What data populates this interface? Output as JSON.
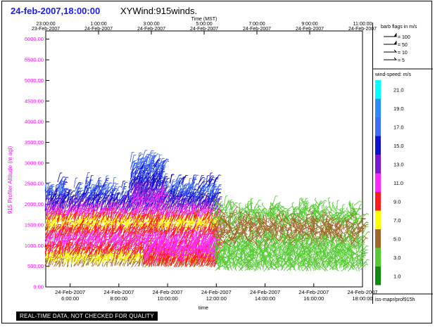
{
  "header": {
    "datetime": "24-feb-2007,18:00:00",
    "title": "XYWind:915winds."
  },
  "footer_note": "REAL-TIME DATA, NOT CHECKED FOR QUALITY",
  "chart_data": {
    "type": "wind-barb-time-height",
    "top_axis": {
      "title": "Time (MST)",
      "ticks": [
        {
          "time": "23:00:00",
          "date": "23-Feb-2007"
        },
        {
          "time": "1:00:00",
          "date": "24-Feb-2007"
        },
        {
          "time": "3:00:00",
          "date": "24-Feb-2007"
        },
        {
          "time": "5:00:00",
          "date": "24-Feb-2007"
        },
        {
          "time": "7:00:00",
          "date": "24-Feb-2007"
        },
        {
          "time": "9:00:00",
          "date": "24-Feb-2007"
        },
        {
          "time": "11:00:00",
          "date": "24-Feb-2007"
        }
      ]
    },
    "bottom_axis": {
      "title": "time",
      "ticks": [
        {
          "date": "24-Feb-2007",
          "time": "6:00:00"
        },
        {
          "date": "24-Feb-2007",
          "time": "8:00:00"
        },
        {
          "date": "24-Feb-2007",
          "time": "10:00:00"
        },
        {
          "date": "24-Feb-2007",
          "time": "12:00:00"
        },
        {
          "date": "24-Feb-2007",
          "time": "14:00:00"
        },
        {
          "date": "24-Feb-2007",
          "time": "16:00:00"
        },
        {
          "date": "24-Feb-2007",
          "time": "18:00:00"
        }
      ],
      "range_hours": [
        5.0,
        18.0
      ]
    },
    "y_axis": {
      "label": "915 Profiler Altitude (m agl)",
      "ticks": [
        "0.00",
        "500.00",
        "1000.00",
        "1500.00",
        "2000.00",
        "2500.00",
        "3000.00",
        "3500.00",
        "4000.00",
        "4500.00",
        "5000.00",
        "5500.00",
        "6000.00"
      ],
      "ylim": [
        0,
        6200
      ],
      "color": "#ff00ff"
    },
    "barb_legend": {
      "title": "barb flags in m/s",
      "items": [
        "= 100",
        "= 50",
        "= 10",
        "= 5"
      ]
    },
    "speed_legend": {
      "title": "wind-speed: m/s",
      "labels": [
        "21.0",
        "19.0",
        "17.0",
        "15.0",
        "13.0",
        "11.0",
        "9.0",
        "7.0",
        "5.0",
        "3.0",
        "1.0"
      ],
      "colors": [
        "#00ffff",
        "#2a8cff",
        "#3f6bff",
        "#1010d0",
        "#7a1ad0",
        "#ff28ff",
        "#ff1a1a",
        "#ffff00",
        "#a0662a",
        "#55cc33",
        "#118811"
      ]
    },
    "source_label": "iss-mapr/prof915h",
    "regions": [
      {
        "t_start": 5.0,
        "t_end": 12.0,
        "alt_min": 500,
        "alt_max": 2600,
        "speed_profile": [
          [
            500,
            5
          ],
          [
            800,
            9
          ],
          [
            1100,
            11
          ],
          [
            1500,
            7
          ],
          [
            1900,
            13
          ],
          [
            2300,
            17
          ],
          [
            2700,
            15
          ]
        ]
      },
      {
        "t_start": 8.5,
        "t_end": 9.8,
        "alt_min": 2000,
        "alt_max": 3200,
        "speed_profile": [
          [
            2000,
            11
          ],
          [
            2500,
            15
          ],
          [
            3000,
            17
          ]
        ]
      },
      {
        "t_start": 9.0,
        "t_end": 12.0,
        "alt_min": 500,
        "alt_max": 1000,
        "speed_profile": [
          [
            500,
            9
          ],
          [
            800,
            11
          ],
          [
            1000,
            11
          ]
        ]
      },
      {
        "t_start": 12.0,
        "t_end": 18.0,
        "alt_min": 400,
        "alt_max": 2000,
        "speed_profile": [
          [
            400,
            3
          ],
          [
            900,
            3
          ],
          [
            1300,
            5
          ],
          [
            1800,
            3
          ]
        ]
      }
    ]
  }
}
